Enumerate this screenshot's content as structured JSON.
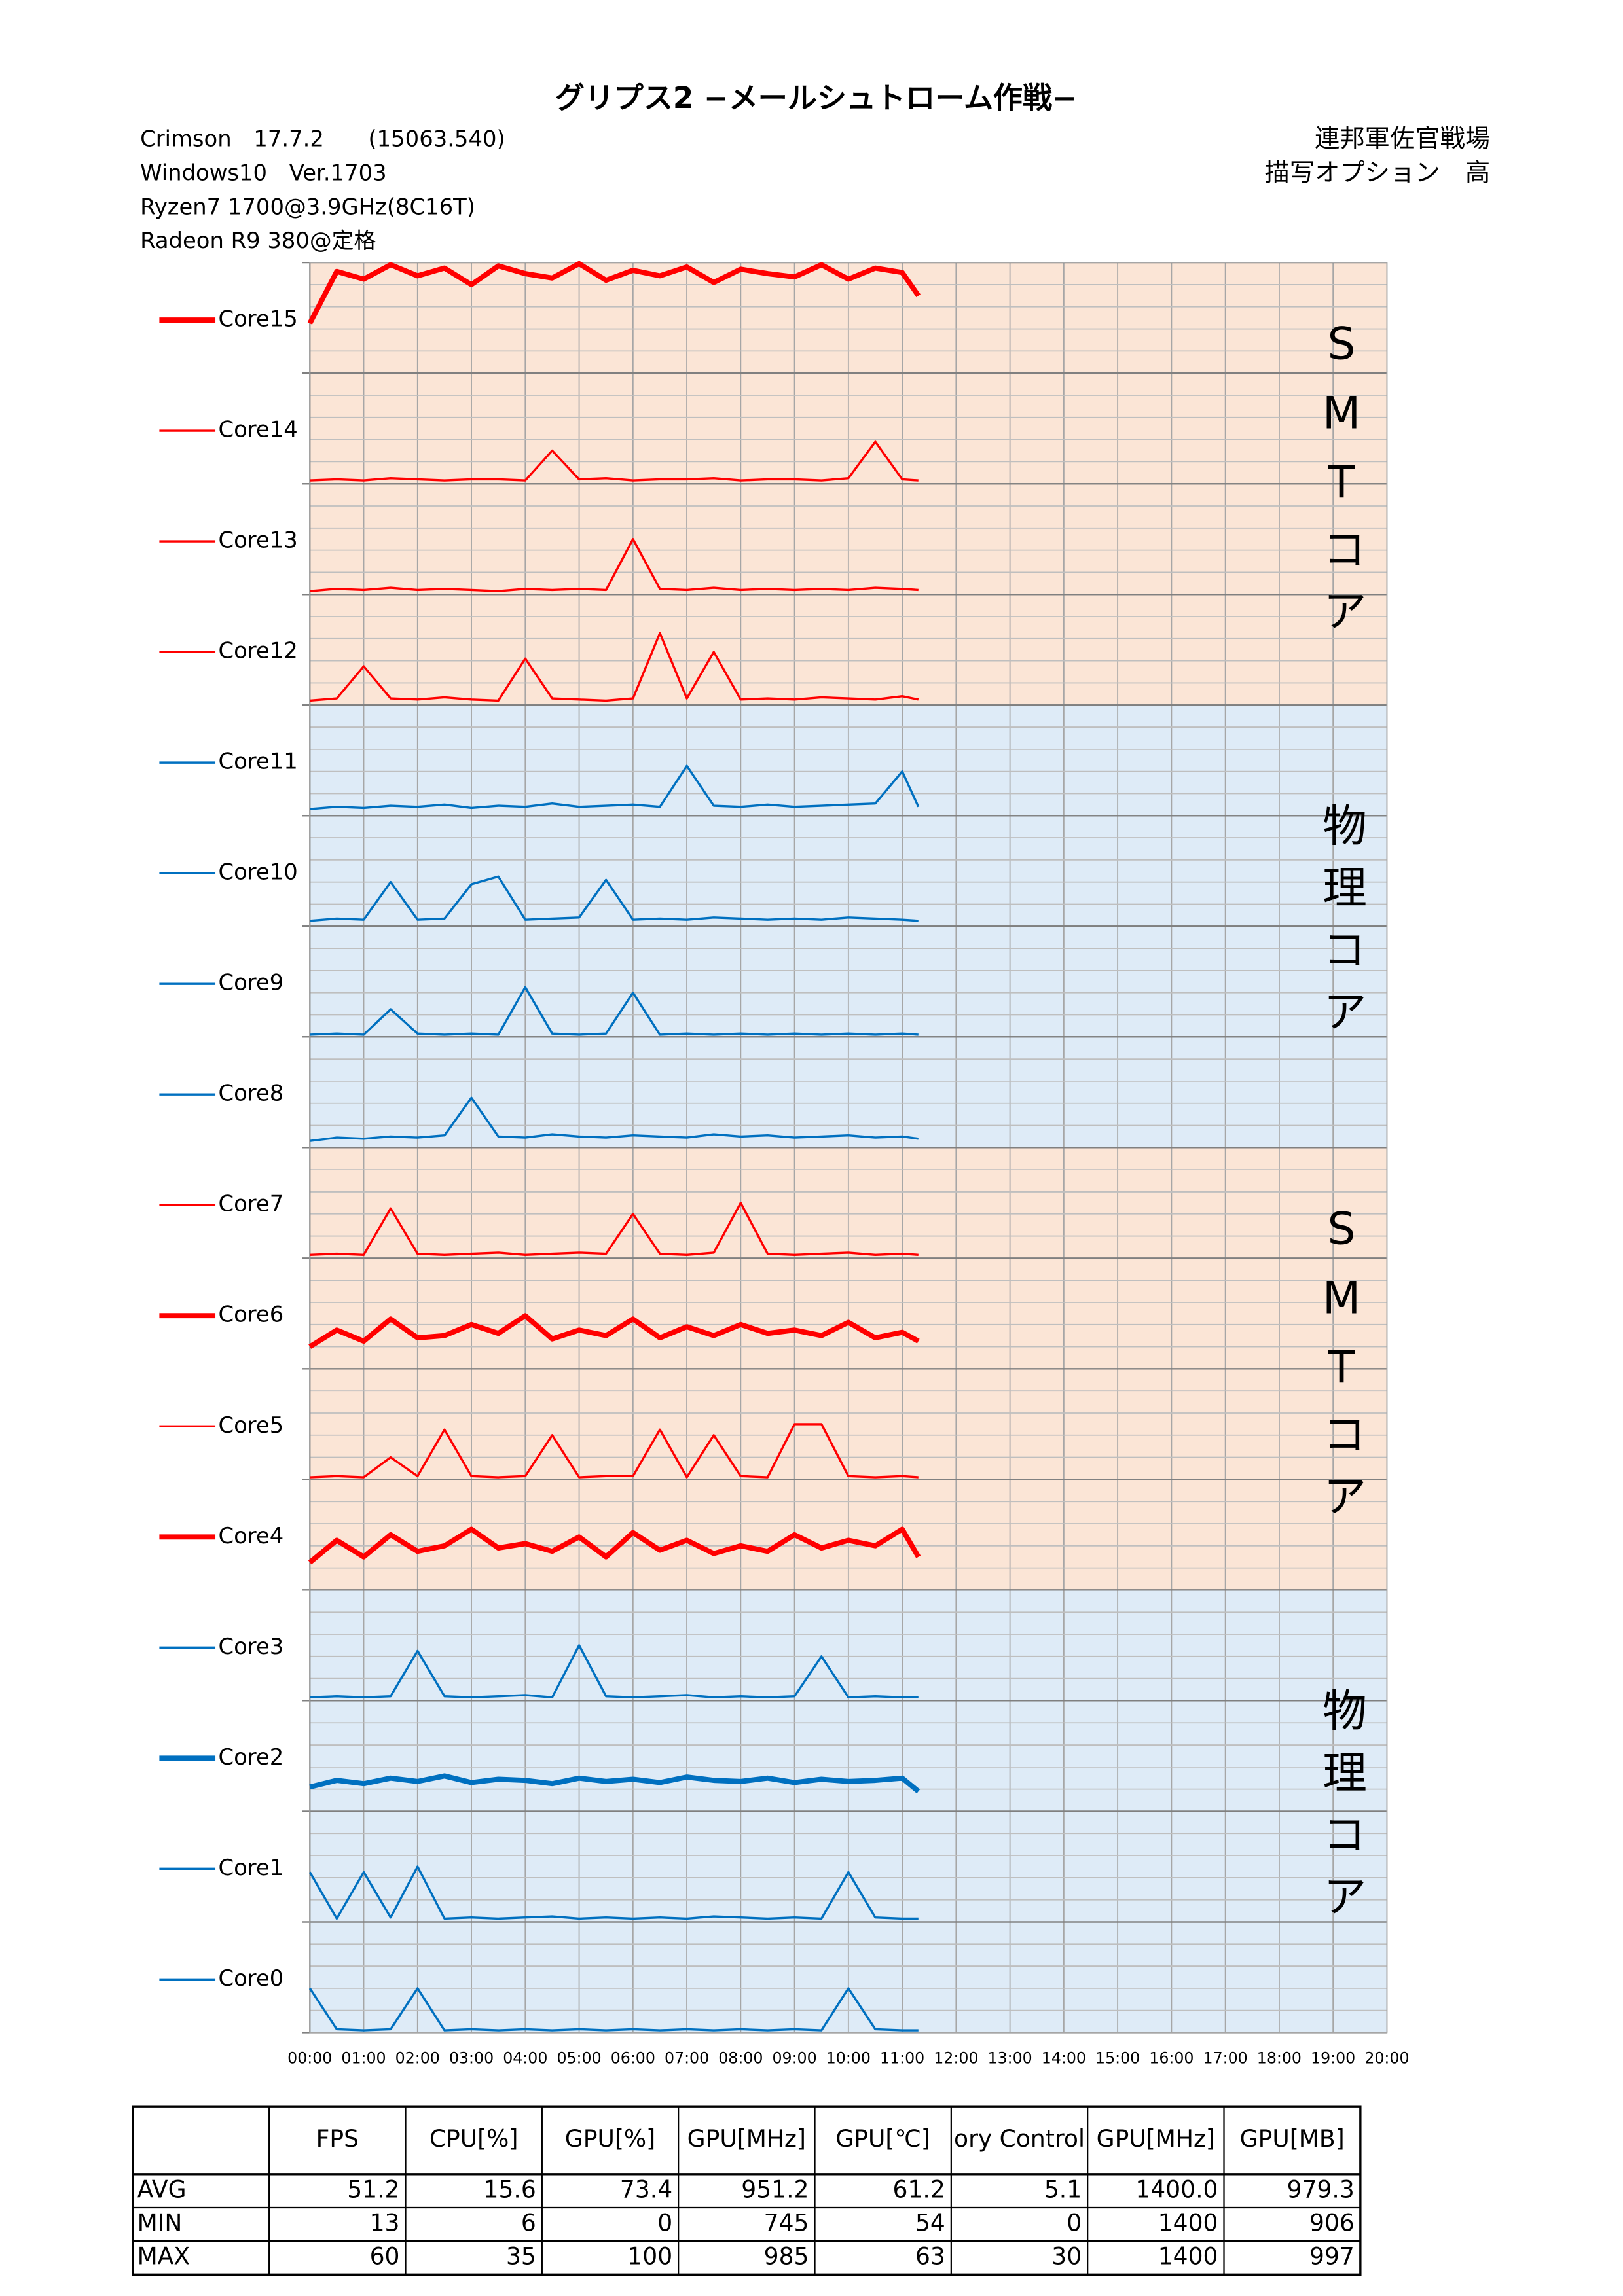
{
  "chart_data": {
    "type": "line",
    "title": "グリプス2 −メールシュトローム作戦−",
    "info_left": [
      "Crimson　17.7.2　　(15063.540)",
      "Windows10　Ver.1703",
      "Ryzen7 1700@3.9GHz(8C16T)",
      "Radeon R9 380@定格"
    ],
    "info_right": [
      "連邦軍佐官戦場",
      "描写オプション　高"
    ],
    "x": [
      0,
      0.5,
      1,
      1.5,
      2,
      2.5,
      3,
      3.5,
      4,
      4.5,
      5,
      5.5,
      6,
      6.5,
      7,
      7.5,
      8,
      8.5,
      9,
      9.5,
      10,
      10.5,
      11,
      11.3
    ],
    "xlim": [
      0,
      20
    ],
    "xticks": [
      {
        "value": 0,
        "label": "00:00"
      },
      {
        "value": 1,
        "label": "01:00"
      },
      {
        "value": 2,
        "label": "02:00"
      },
      {
        "value": 3,
        "label": "03:00"
      },
      {
        "value": 4,
        "label": "04:00"
      },
      {
        "value": 5,
        "label": "05:00"
      },
      {
        "value": 6,
        "label": "06:00"
      },
      {
        "value": 7,
        "label": "07:00"
      },
      {
        "value": 8,
        "label": "08:00"
      },
      {
        "value": 9,
        "label": "09:00"
      },
      {
        "value": 10,
        "label": "10:00"
      },
      {
        "value": 11,
        "label": "11:00"
      },
      {
        "value": 12,
        "label": "12:00"
      },
      {
        "value": 13,
        "label": "13:00"
      },
      {
        "value": 14,
        "label": "14:00"
      },
      {
        "value": 15,
        "label": "15:00"
      },
      {
        "value": 16,
        "label": "16:00"
      },
      {
        "value": 17,
        "label": "17:00"
      },
      {
        "value": 18,
        "label": "18:00"
      },
      {
        "value": 19,
        "label": "19:00"
      },
      {
        "value": 20,
        "label": "20:00"
      }
    ],
    "ylim": [
      0,
      100
    ],
    "yticks": [
      0,
      20,
      40,
      60,
      80,
      100
    ],
    "grid": true,
    "legend": "left",
    "annotations": [
      "SMTコア",
      "物理コア",
      "SMTコア",
      "物理コア"
    ],
    "series": [
      {
        "name": "Core15",
        "color": "#ff0000",
        "width": 3.5,
        "background": "#fbe5d6",
        "values": [
          45,
          92,
          85,
          98,
          88,
          95,
          80,
          97,
          90,
          86,
          99,
          84,
          93,
          88,
          96,
          82,
          94,
          90,
          87,
          98,
          85,
          95,
          91,
          70
        ]
      },
      {
        "name": "Core14",
        "color": "#ff0000",
        "width": 1.5,
        "background": "#fbe5d6",
        "values": [
          3,
          4,
          3,
          5,
          4,
          3,
          4,
          4,
          3,
          30,
          4,
          5,
          3,
          4,
          4,
          5,
          3,
          4,
          4,
          3,
          5,
          38,
          4,
          3
        ]
      },
      {
        "name": "Core13",
        "color": "#ff0000",
        "width": 1.5,
        "background": "#fbe5d6",
        "values": [
          3,
          5,
          4,
          6,
          4,
          5,
          4,
          3,
          5,
          4,
          5,
          4,
          50,
          5,
          4,
          6,
          4,
          5,
          4,
          5,
          4,
          6,
          5,
          4
        ]
      },
      {
        "name": "Core12",
        "color": "#ff0000",
        "width": 1.5,
        "background": "#fbe5d6",
        "values": [
          4,
          6,
          35,
          6,
          5,
          7,
          5,
          4,
          42,
          6,
          5,
          4,
          6,
          65,
          6,
          48,
          5,
          6,
          5,
          7,
          6,
          5,
          8,
          5
        ]
      },
      {
        "name": "Core11",
        "color": "#0070c0",
        "width": 1.5,
        "background": "#deebf7",
        "values": [
          6,
          8,
          7,
          9,
          8,
          10,
          7,
          9,
          8,
          11,
          8,
          9,
          10,
          8,
          45,
          9,
          8,
          10,
          8,
          9,
          10,
          11,
          40,
          8
        ]
      },
      {
        "name": "Core10",
        "color": "#0070c0",
        "width": 1.5,
        "background": "#deebf7",
        "values": [
          5,
          7,
          6,
          40,
          6,
          7,
          38,
          45,
          6,
          7,
          8,
          42,
          6,
          7,
          6,
          8,
          7,
          6,
          7,
          6,
          8,
          7,
          6,
          5
        ]
      },
      {
        "name": "Core9",
        "color": "#0070c0",
        "width": 1.5,
        "background": "#deebf7",
        "values": [
          2,
          3,
          2,
          25,
          3,
          2,
          3,
          2,
          45,
          3,
          2,
          3,
          40,
          2,
          3,
          2,
          3,
          2,
          3,
          2,
          3,
          2,
          3,
          2
        ]
      },
      {
        "name": "Core8",
        "color": "#0070c0",
        "width": 1.5,
        "background": "#deebf7",
        "values": [
          6,
          9,
          8,
          10,
          9,
          11,
          45,
          10,
          9,
          12,
          10,
          9,
          11,
          10,
          9,
          12,
          10,
          11,
          9,
          10,
          11,
          9,
          10,
          8
        ]
      },
      {
        "name": "Core7",
        "color": "#ff0000",
        "width": 1.5,
        "background": "#fbe5d6",
        "values": [
          3,
          4,
          3,
          45,
          4,
          3,
          4,
          5,
          3,
          4,
          5,
          4,
          40,
          4,
          3,
          5,
          50,
          4,
          3,
          4,
          5,
          3,
          4,
          3
        ]
      },
      {
        "name": "Core6",
        "color": "#ff0000",
        "width": 3.5,
        "background": "#fbe5d6",
        "values": [
          20,
          35,
          25,
          45,
          28,
          30,
          40,
          32,
          48,
          27,
          35,
          30,
          45,
          28,
          38,
          30,
          40,
          32,
          35,
          30,
          42,
          28,
          33,
          25
        ]
      },
      {
        "name": "Core5",
        "color": "#ff0000",
        "width": 1.5,
        "background": "#fbe5d6",
        "values": [
          2,
          3,
          2,
          20,
          3,
          45,
          3,
          2,
          3,
          40,
          2,
          3,
          3,
          45,
          2,
          40,
          3,
          2,
          50,
          50,
          3,
          2,
          3,
          2
        ]
      },
      {
        "name": "Core4",
        "color": "#ff0000",
        "width": 3.5,
        "background": "#fbe5d6",
        "values": [
          25,
          45,
          30,
          50,
          35,
          40,
          55,
          38,
          42,
          35,
          48,
          30,
          52,
          36,
          45,
          33,
          40,
          35,
          50,
          38,
          45,
          40,
          55,
          30
        ]
      },
      {
        "name": "Core3",
        "color": "#0070c0",
        "width": 1.5,
        "background": "#deebf7",
        "values": [
          3,
          4,
          3,
          4,
          45,
          4,
          3,
          4,
          5,
          3,
          50,
          4,
          3,
          4,
          5,
          3,
          4,
          3,
          4,
          40,
          3,
          4,
          3,
          3
        ]
      },
      {
        "name": "Core2",
        "color": "#0070c0",
        "width": 3.5,
        "background": "#deebf7",
        "values": [
          22,
          28,
          25,
          30,
          27,
          32,
          26,
          29,
          28,
          25,
          30,
          27,
          29,
          26,
          31,
          28,
          27,
          30,
          26,
          29,
          27,
          28,
          30,
          18
        ]
      },
      {
        "name": "Core1",
        "color": "#0070c0",
        "width": 1.5,
        "background": "#deebf7",
        "values": [
          45,
          3,
          45,
          4,
          50,
          3,
          4,
          3,
          4,
          5,
          3,
          4,
          3,
          4,
          3,
          5,
          4,
          3,
          4,
          3,
          45,
          4,
          3,
          3
        ]
      },
      {
        "name": "Core0",
        "color": "#0070c0",
        "width": 1.5,
        "background": "#deebf7",
        "values": [
          40,
          3,
          2,
          3,
          40,
          2,
          3,
          2,
          3,
          2,
          3,
          2,
          3,
          2,
          3,
          2,
          3,
          2,
          3,
          2,
          40,
          3,
          2,
          2
        ]
      }
    ]
  },
  "table": {
    "header": [
      "FPS",
      "CPU[%]",
      "GPU[%]",
      "GPU[MHz]",
      "GPU[℃]",
      "ory Control",
      "GPU[MHz]",
      "GPU[MB]"
    ],
    "rows": [
      [
        "AVG",
        "51.2",
        "15.6",
        "73.4",
        "951.2",
        "61.2",
        "5.1",
        "1400.0",
        "979.3"
      ],
      [
        "MIN",
        "13",
        "6",
        "0",
        "745",
        "54",
        "0",
        "1400",
        "906"
      ],
      [
        "MAX",
        "60",
        "35",
        "100",
        "985",
        "63",
        "30",
        "1400",
        "997"
      ]
    ]
  }
}
